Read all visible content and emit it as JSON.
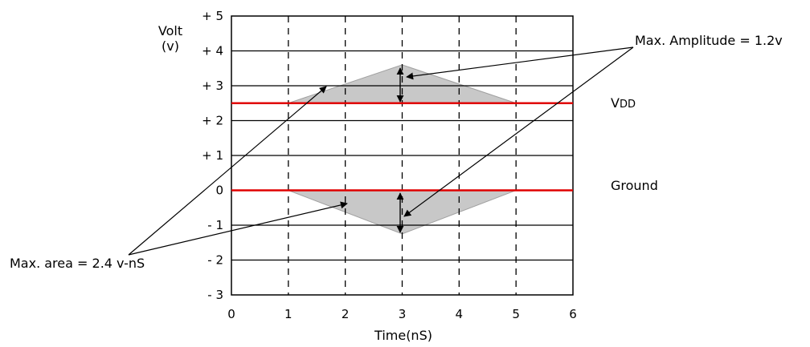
{
  "chart_data": {
    "type": "line",
    "title": "",
    "xlabel": "Time(nS)",
    "ylabel_lines": [
      "Volt",
      "(v)"
    ],
    "xlim": [
      0,
      6
    ],
    "ylim": [
      -3,
      5
    ],
    "x_ticks": [
      "0",
      "1",
      "2",
      "3",
      "4",
      "5",
      "6"
    ],
    "y_ticks": [
      "+ 5",
      "+ 4",
      "+ 3",
      "+ 2",
      "+ 1",
      "0",
      "- 1",
      "- 2",
      "- 3"
    ],
    "y_tick_values": [
      5,
      4,
      3,
      2,
      1,
      0,
      -1,
      -2,
      -3
    ],
    "vertical_gridlines_dashed": [
      1,
      2,
      3,
      4,
      5
    ],
    "reference_lines": [
      {
        "name": "VDD",
        "label_main": "V",
        "label_sub": "DD",
        "y": 2.5,
        "color": "#e00000"
      },
      {
        "name": "Ground",
        "label_main": "Ground",
        "y": 0,
        "color": "#e00000"
      }
    ],
    "regions": [
      {
        "name": "overshoot",
        "points": [
          [
            1,
            2.5
          ],
          [
            3,
            3.6
          ],
          [
            5,
            2.5
          ]
        ],
        "color": "#c8c8c8"
      },
      {
        "name": "undershoot",
        "points": [
          [
            1,
            0
          ],
          [
            3,
            -1.25
          ],
          [
            5,
            0
          ]
        ],
        "color": "#c8c8c8"
      }
    ],
    "annotations": [
      {
        "text": "Max. Amplitude = 1.2v"
      },
      {
        "text": "Max. area = 2.4 v-nS"
      }
    ]
  }
}
